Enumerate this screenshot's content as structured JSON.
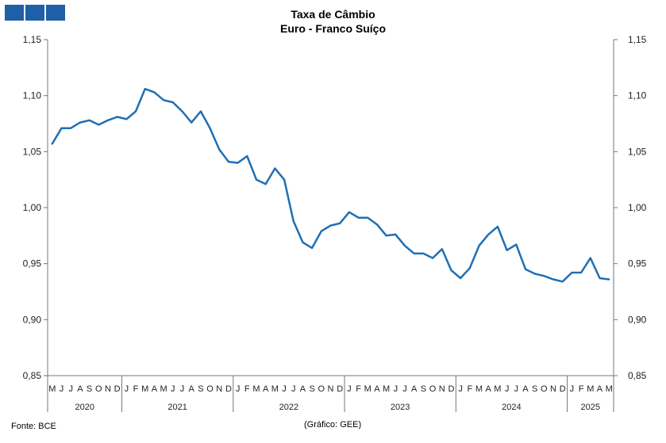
{
  "header": {
    "title_line1": "Taxa de Câmbio",
    "title_line2": "Euro - Franco Suíço",
    "logo_color": "#1f5fa8"
  },
  "footer": {
    "source": "Fonte: BCE",
    "credit": "(Gráfico: GEE)"
  },
  "chart_data": {
    "type": "line",
    "title": "Taxa de Câmbio\nEuro - Franco Suíço",
    "xlabel": "",
    "ylabel": "",
    "ylim": [
      0.85,
      1.15
    ],
    "yticks": [
      "0,85",
      "0,90",
      "0,95",
      "1,00",
      "1,05",
      "1,10",
      "1,15"
    ],
    "y_axis_both_sides": true,
    "grid": false,
    "line_color": "#1f6fb4",
    "month_labels": [
      "M",
      "J",
      "J",
      "A",
      "S",
      "O",
      "N",
      "D",
      "J",
      "F",
      "M",
      "A",
      "M",
      "J",
      "J",
      "A",
      "S",
      "O",
      "N",
      "D",
      "J",
      "F",
      "M",
      "A",
      "M",
      "J",
      "J",
      "A",
      "S",
      "O",
      "N",
      "D",
      "J",
      "F",
      "M",
      "A",
      "M",
      "J",
      "J",
      "A",
      "S",
      "O",
      "N",
      "D",
      "J",
      "F",
      "M",
      "A",
      "M",
      "J",
      "J",
      "A",
      "S",
      "O",
      "N",
      "D",
      "J",
      "F",
      "M",
      "A",
      "M"
    ],
    "years": [
      {
        "label": "2020",
        "start": 0,
        "end": 8
      },
      {
        "label": "2021",
        "start": 8,
        "end": 20
      },
      {
        "label": "2022",
        "start": 20,
        "end": 32
      },
      {
        "label": "2023",
        "start": 32,
        "end": 44
      },
      {
        "label": "2024",
        "start": 44,
        "end": 56
      },
      {
        "label": "2025",
        "start": 56,
        "end": 61
      }
    ],
    "series": [
      {
        "values": [
          1.057,
          1.071,
          1.071,
          1.076,
          1.078,
          1.074,
          1.078,
          1.081,
          1.079,
          1.086,
          1.106,
          1.103,
          1.096,
          1.094,
          1.086,
          1.076,
          1.086,
          1.071,
          1.052,
          1.041,
          1.04,
          1.046,
          1.025,
          1.021,
          1.035,
          1.025,
          0.988,
          0.969,
          0.964,
          0.979,
          0.984,
          0.986,
          0.996,
          0.991,
          0.991,
          0.985,
          0.975,
          0.976,
          0.966,
          0.959,
          0.959,
          0.955,
          0.963,
          0.944,
          0.937,
          0.946,
          0.966,
          0.976,
          0.983,
          0.962,
          0.967,
          0.945,
          0.941,
          0.939,
          0.936,
          0.934,
          0.942,
          0.942,
          0.955,
          0.937,
          0.936
        ]
      }
    ]
  }
}
